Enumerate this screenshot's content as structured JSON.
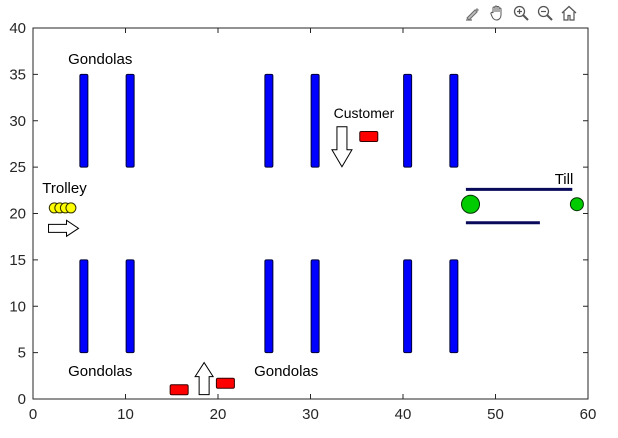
{
  "toolbar": {
    "tools": [
      {
        "name": "edit-brush-icon"
      },
      {
        "name": "pan-hand-icon"
      },
      {
        "name": "zoom-in-icon"
      },
      {
        "name": "zoom-out-icon"
      },
      {
        "name": "home-icon"
      }
    ]
  },
  "chart_data": {
    "type": "scatter",
    "title": "",
    "xlabel": "",
    "ylabel": "",
    "xlim": [
      0,
      60
    ],
    "ylim": [
      0,
      40
    ],
    "xticks": [
      0,
      10,
      20,
      30,
      40,
      50,
      60
    ],
    "yticks": [
      0,
      5,
      10,
      15,
      20,
      25,
      30,
      35,
      40
    ],
    "grid": false,
    "colors": {
      "gondola": "#0000ff",
      "customer": "#ff0000",
      "trolley": "#ffff00",
      "till_circle": "#00cc00",
      "till_line": "#0a0a5a",
      "arrow": "#ffffff"
    },
    "gondolas": [
      {
        "x": 5.5,
        "y1": 25,
        "y2": 35
      },
      {
        "x": 10.5,
        "y1": 25,
        "y2": 35
      },
      {
        "x": 25.5,
        "y1": 25,
        "y2": 35
      },
      {
        "x": 30.5,
        "y1": 25,
        "y2": 35
      },
      {
        "x": 40.5,
        "y1": 25,
        "y2": 35
      },
      {
        "x": 45.5,
        "y1": 25,
        "y2": 35
      },
      {
        "x": 5.5,
        "y1": 5,
        "y2": 15
      },
      {
        "x": 10.5,
        "y1": 5,
        "y2": 15
      },
      {
        "x": 25.5,
        "y1": 5,
        "y2": 15
      },
      {
        "x": 30.5,
        "y1": 5,
        "y2": 15
      },
      {
        "x": 40.5,
        "y1": 5,
        "y2": 15
      },
      {
        "x": 45.5,
        "y1": 5,
        "y2": 15
      }
    ],
    "customers": [
      {
        "x": 36.3,
        "y": 28.3
      },
      {
        "x": 15.8,
        "y": 1.0
      },
      {
        "x": 20.8,
        "y": 1.7
      }
    ],
    "trolleys": [
      {
        "x": 2.3,
        "y": 20.6
      },
      {
        "x": 2.9,
        "y": 20.6
      },
      {
        "x": 3.5,
        "y": 20.6
      },
      {
        "x": 4.1,
        "y": 20.6
      }
    ],
    "arrows": [
      {
        "direction": "right",
        "x": 3.3,
        "y": 18.4
      },
      {
        "direction": "down",
        "x": 33.4,
        "y": 27.2
      },
      {
        "direction": "up",
        "x": 18.5,
        "y": 2.2
      }
    ],
    "till": {
      "lines": [
        {
          "x1": 46.8,
          "x2": 58.3,
          "y": 22.6
        },
        {
          "x1": 46.8,
          "x2": 54.8,
          "y": 19.0
        }
      ],
      "circles": [
        {
          "x": 47.3,
          "y": 21.0,
          "size": "large"
        },
        {
          "x": 58.8,
          "y": 21.0,
          "size": "small"
        }
      ]
    },
    "annotations": [
      {
        "text": "Gondolas",
        "x": 3.8,
        "y": 36.1
      },
      {
        "text": "Gondolas",
        "x": 3.8,
        "y": 2.5
      },
      {
        "text": "Gondolas",
        "x": 23.9,
        "y": 2.5
      },
      {
        "text": "Customer",
        "x": 32.5,
        "y": 30.3
      },
      {
        "text": "Trolley",
        "x": 1.0,
        "y": 22.2
      },
      {
        "text": "Till",
        "x": 56.4,
        "y": 23.2
      }
    ]
  }
}
